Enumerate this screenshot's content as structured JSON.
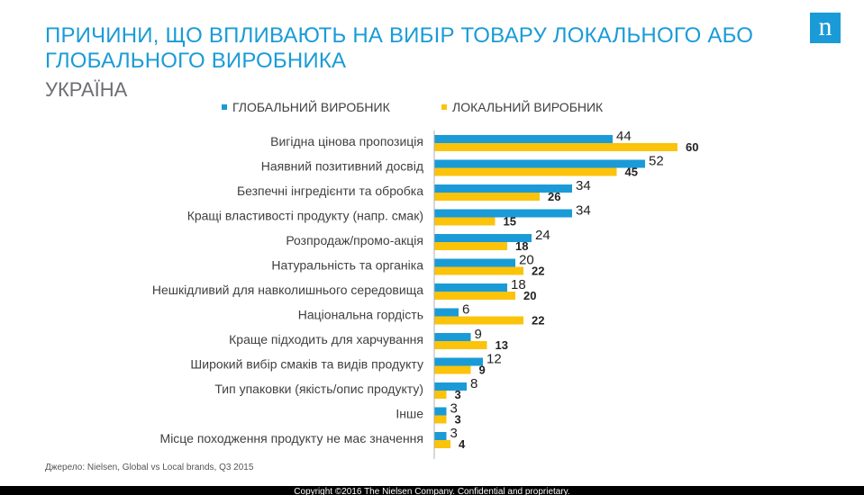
{
  "header": {
    "title": "ПРИЧИНИ, ЩО ВПЛИВАЮТЬ НА ВИБІР ТОВАРУ ЛОКАЛЬНОГО АБО ГЛОБАЛЬНОГО ВИРОБНИКА",
    "subtitle": "УКРАЇНА",
    "logo": "n"
  },
  "colors": {
    "global": "#1a9bd7",
    "local": "#fcc30b",
    "title": "#1a9bd7"
  },
  "chart_data": {
    "type": "bar",
    "orientation": "horizontal",
    "title": "ПРИЧИНИ, ЩО ВПЛИВАЮТЬ НА ВИБІР ТОВАРУ ЛОКАЛЬНОГО АБО ГЛОБАЛЬНОГО ВИРОБНИКА",
    "subtitle": "УКРАЇНА",
    "legend_position": "top",
    "xlim": [
      0,
      60
    ],
    "categories": [
      "Вигідна цінова пропозиція",
      "Наявний позитивний досвід",
      "Безпечні інгредієнти та обробка",
      "Кращі властивості продукту (напр. смак)",
      "Розпродаж/промо-акція",
      "Натуральність та органіка",
      "Нешкідливий для навколишнього середовища",
      "Національна гордість",
      "Краще підходить для харчування",
      "Широкий вибір смаків та видів продукту",
      "Тип упаковки (якість/опис продукту)",
      "Інше",
      "Місце походження продукту не має значення"
    ],
    "series": [
      {
        "name": "ГЛОБАЛЬНИЙ ВИРОБНИК",
        "values": [
          44,
          52,
          34,
          34,
          24,
          20,
          18,
          6,
          9,
          12,
          8,
          3,
          3
        ]
      },
      {
        "name": "ЛОКАЛЬНИЙ ВИРОБНИК",
        "values": [
          60,
          45,
          26,
          15,
          18,
          22,
          20,
          22,
          13,
          9,
          3,
          3,
          4
        ]
      }
    ]
  },
  "source": "Джерело: Nielsen, Global vs Local brands, Q3 2015",
  "footer": "Copyright ©2016 The Nielsen Company. Confidential and proprietary."
}
